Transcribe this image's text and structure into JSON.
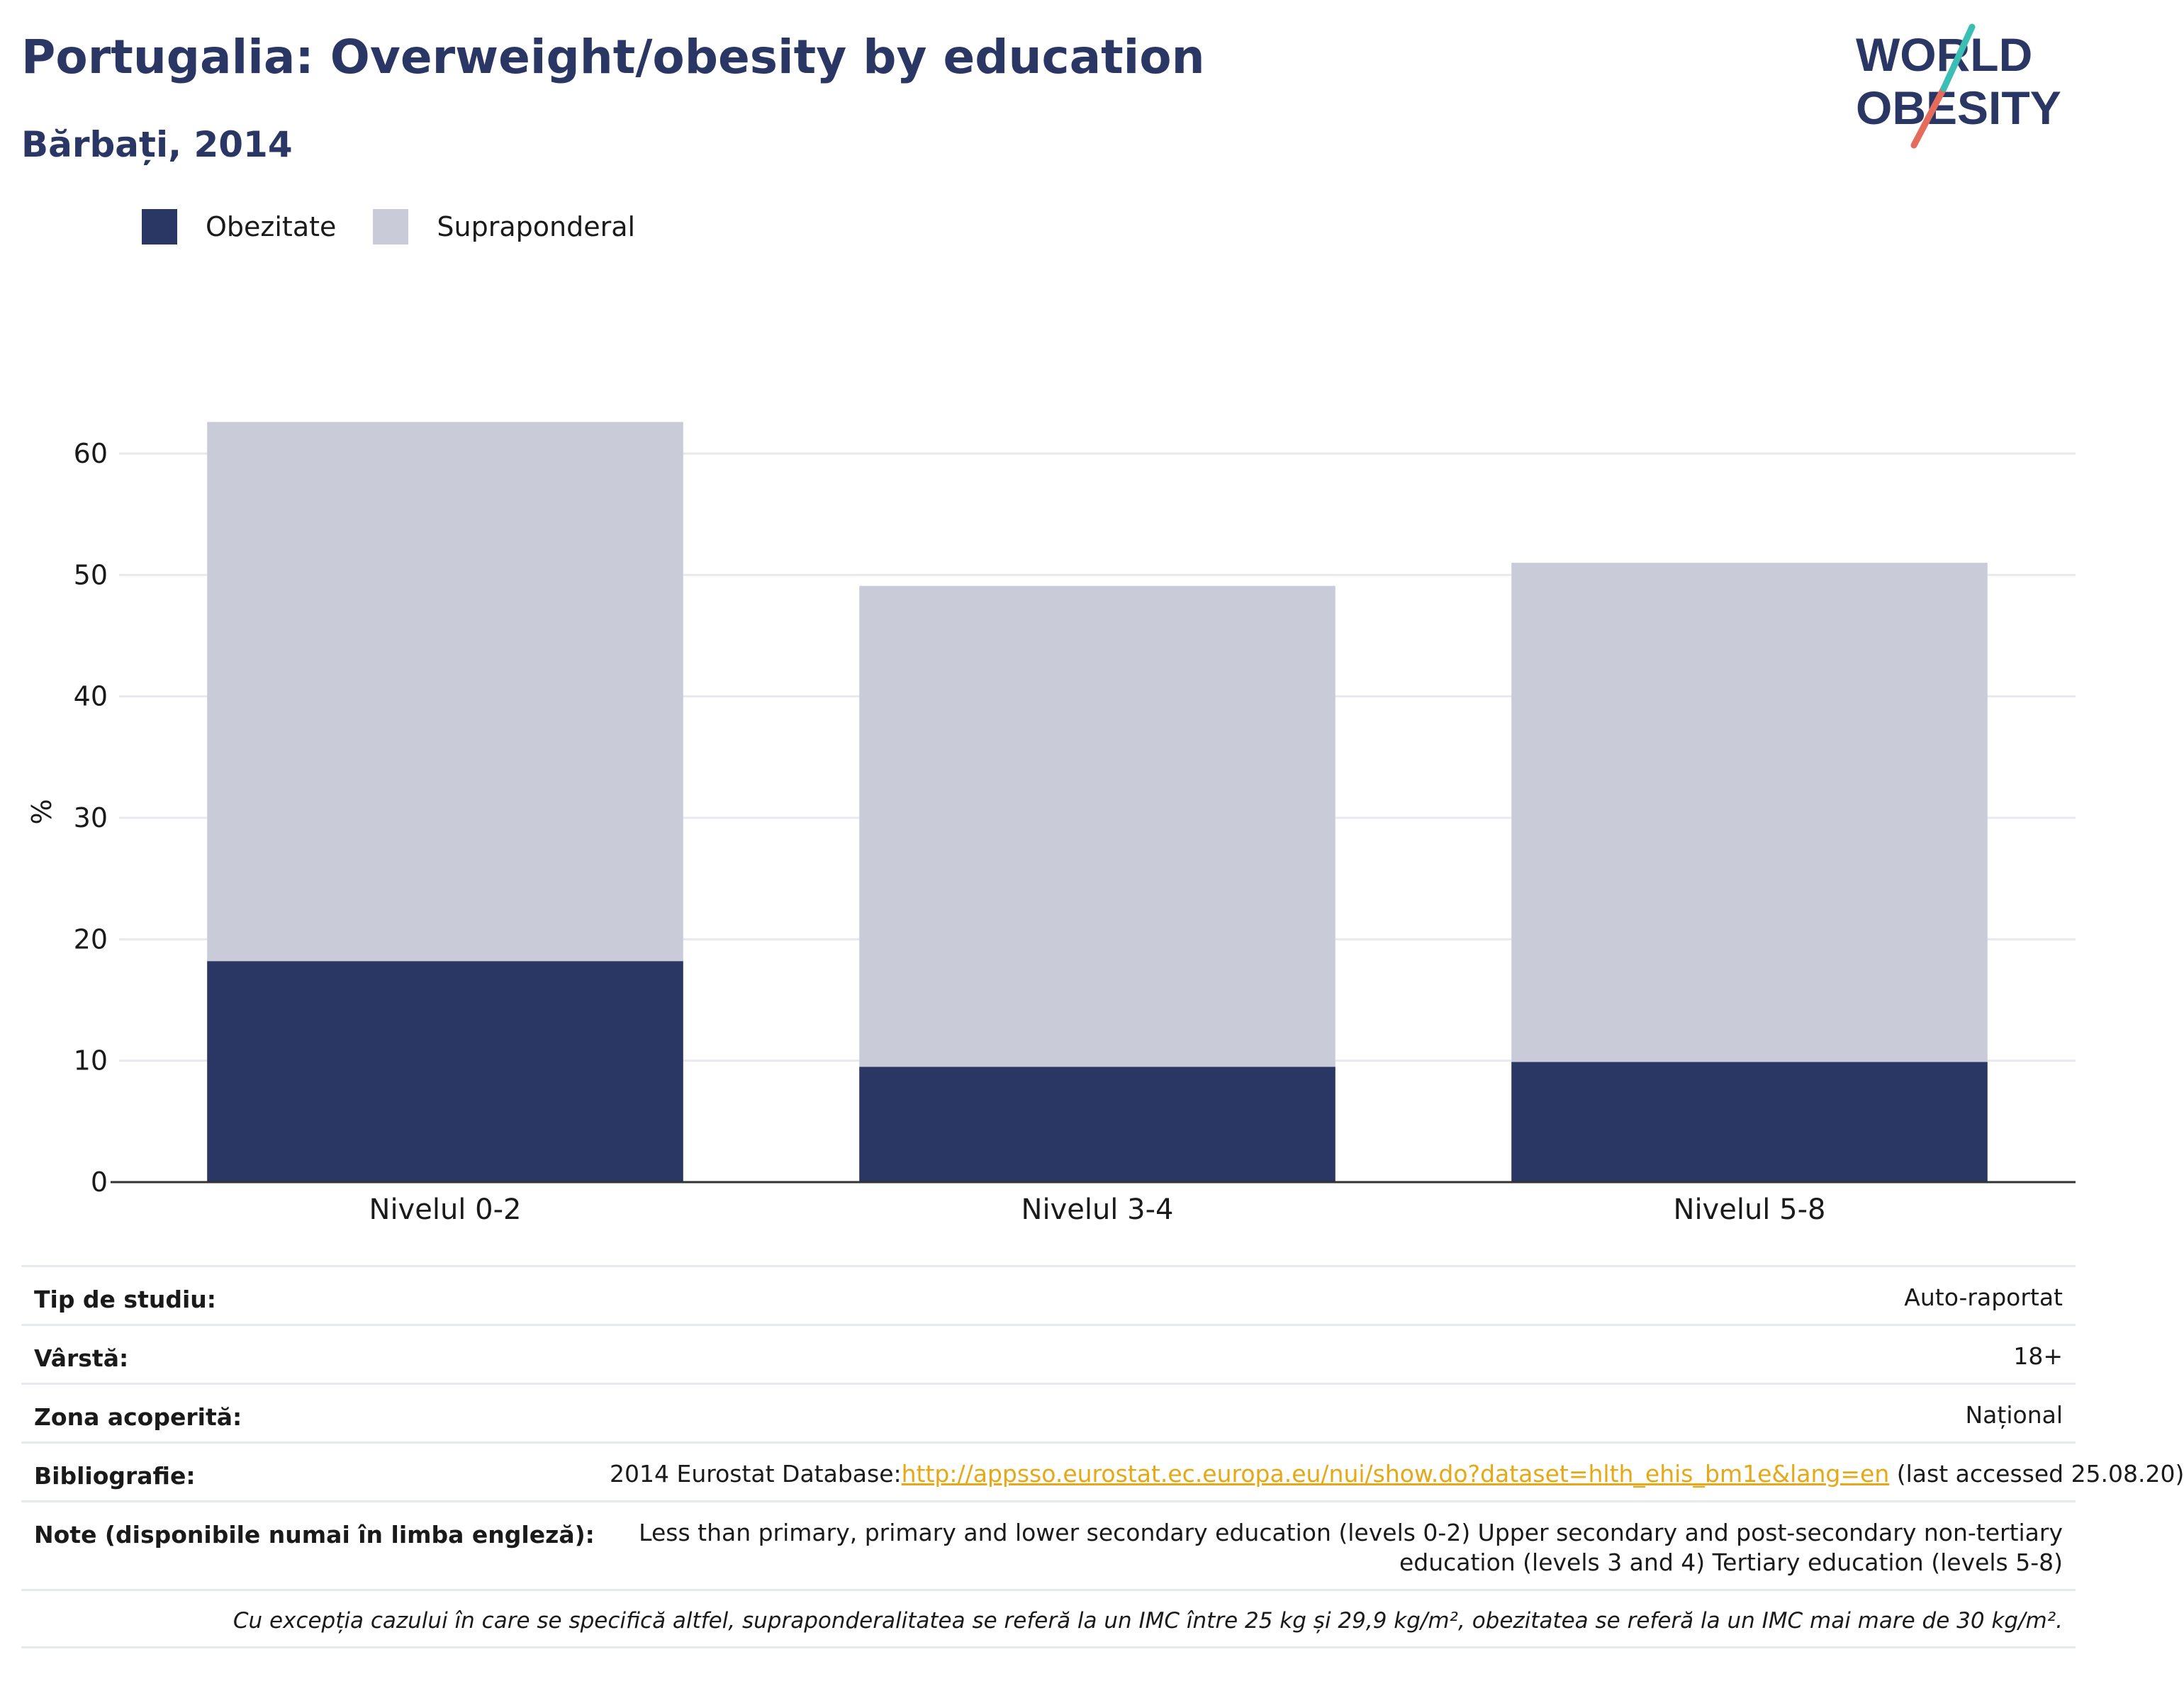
{
  "header": {
    "title": "Portugalia: Overweight/obesity by education",
    "subtitle": "Bărbați, 2014"
  },
  "logo": {
    "line1": "WORLD",
    "line2": "OBESITY",
    "colors": {
      "text": "#2a3663",
      "slash_top": "#3bbfb4",
      "slash_bottom": "#e56b5c"
    }
  },
  "legend": [
    {
      "label": "Obezitate",
      "color": "#2a3663"
    },
    {
      "label": "Supraponderal",
      "color": "#c9ccd8"
    }
  ],
  "chart_data": {
    "type": "bar",
    "stacked": true,
    "categories": [
      "Nivelul 0-2",
      "Nivelul 3-4",
      "Nivelul 5-8"
    ],
    "series": [
      {
        "name": "Obezitate",
        "values": [
          18.2,
          9.5,
          9.9
        ],
        "color": "#2a3663"
      },
      {
        "name": "Supraponderal",
        "values": [
          44.4,
          39.6,
          41.1
        ],
        "color": "#c9ccd8"
      }
    ],
    "ylabel": "%",
    "xlabel": "",
    "ylim": [
      0,
      67
    ],
    "yticks": [
      0,
      10,
      20,
      30,
      40,
      50,
      60
    ],
    "grid": true,
    "legend_position": "top-left"
  },
  "info": {
    "rows": [
      {
        "key": "Tip de studiu:",
        "value": "Auto-raportat"
      },
      {
        "key": "Vârstă:",
        "value": "18+"
      },
      {
        "key": "Zona acoperită:",
        "value": "Național"
      }
    ],
    "bibliography": {
      "key": "Bibliografie:",
      "prefix": "2014 Eurostat Database:",
      "link": "http://appsso.eurostat.ec.europa.eu/nui/show.do?dataset=hlth_ehis_bm1e&lang=en",
      "suffix": " (last accessed 25.08.20)"
    },
    "notes": {
      "key": "Note (disponibile numai în limba engleză):",
      "value": "Less than primary, primary and lower secondary education (levels 0-2) Upper secondary and post-secondary non-tertiary education (levels 3 and 4) Tertiary education (levels 5-8)"
    },
    "footnote": "Cu excepția cazului în care se specifică altfel, supraponderalitatea se referă la un IMC între 25 kg și 29,9 kg/m², obezitatea se referă la un IMC mai mare de 30 kg/m²."
  }
}
